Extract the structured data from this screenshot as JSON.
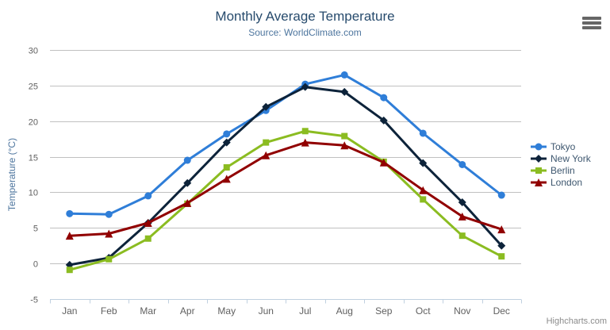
{
  "chart": {
    "credits": "Highcharts.com",
    "background": "#ffffff"
  },
  "colors": {
    "title": "#274b6d",
    "subtitle": "#4d759e",
    "axis_title": "#4d759e",
    "tick_label": "#606060",
    "grid": "#C0C0C0",
    "axis_line": "#C0D0E0",
    "legend_text": "#3E576F",
    "credits_text": "#8c8c8c"
  },
  "icons": {
    "export_menu": "hamburger-icon"
  },
  "chart_data": {
    "type": "line",
    "title": "Monthly Average Temperature",
    "subtitle": "Source: WorldClimate.com",
    "xlabel": "",
    "ylabel": "Temperature (°C)",
    "ylim": [
      -5,
      30
    ],
    "yticks": [
      30,
      25,
      20,
      15,
      10,
      5,
      0,
      -5
    ],
    "grid": true,
    "legend_position": "right",
    "categories": [
      "Jan",
      "Feb",
      "Mar",
      "Apr",
      "May",
      "Jun",
      "Jul",
      "Aug",
      "Sep",
      "Oct",
      "Nov",
      "Dec"
    ],
    "series": [
      {
        "name": "Tokyo",
        "color": "#2f7ed8",
        "symbol": "circle",
        "values": [
          7.0,
          6.9,
          9.5,
          14.5,
          18.2,
          21.5,
          25.2,
          26.5,
          23.3,
          18.3,
          13.9,
          9.6
        ]
      },
      {
        "name": "New York",
        "color": "#0d233a",
        "symbol": "diamond",
        "values": [
          -0.2,
          0.8,
          5.7,
          11.3,
          17.0,
          22.0,
          24.8,
          24.1,
          20.1,
          14.1,
          8.6,
          2.5
        ]
      },
      {
        "name": "Berlin",
        "color": "#8bbc21",
        "symbol": "square",
        "values": [
          -0.9,
          0.6,
          3.5,
          8.4,
          13.5,
          17.0,
          18.6,
          17.9,
          14.3,
          9.0,
          3.9,
          1.0
        ]
      },
      {
        "name": "London",
        "color": "#910000",
        "symbol": "triangle",
        "values": [
          3.9,
          4.2,
          5.7,
          8.5,
          11.9,
          15.2,
          17.0,
          16.6,
          14.2,
          10.3,
          6.6,
          4.8
        ]
      }
    ]
  }
}
